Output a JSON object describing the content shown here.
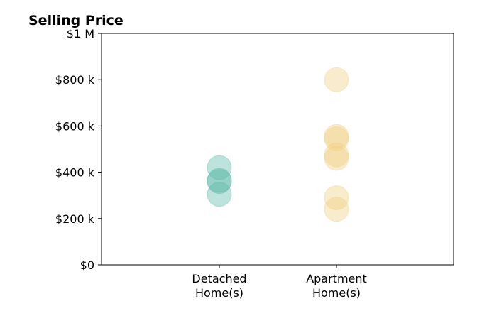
{
  "chart_data": {
    "type": "scatter",
    "title": "Selling Price",
    "xlabel": "",
    "ylabel": "",
    "categories": [
      "Detached Home(s)",
      "Apartment Home(s)"
    ],
    "category_label_lines": [
      [
        "Detached",
        "Home(s)"
      ],
      [
        "Apartment",
        "Home(s)"
      ]
    ],
    "ylim": [
      0,
      1000000
    ],
    "yticks": [
      0,
      200000,
      400000,
      600000,
      800000,
      1000000
    ],
    "ytick_labels": [
      "$0",
      "$200 k",
      "$400 k",
      "$600 k",
      "$800 k",
      "$1 M"
    ],
    "grid": false,
    "legend": "none",
    "series": [
      {
        "category": "Detached Home(s)",
        "color": "#5cb8a8",
        "values": [
          420000,
          365000,
          360000,
          305000
        ]
      },
      {
        "category": "Apartment Home(s)",
        "color": "#f0d080",
        "values": [
          800000,
          555000,
          545000,
          475000,
          460000,
          290000,
          240000
        ]
      }
    ]
  }
}
